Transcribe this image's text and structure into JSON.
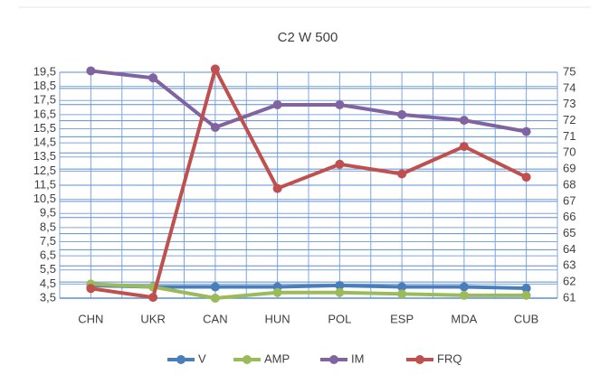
{
  "chart_data": {
    "type": "line",
    "title": "C2 W 500",
    "categories": [
      "CHN",
      "UKR",
      "CAN",
      "HUN",
      "POL",
      "ESP",
      "MDA",
      "CUB"
    ],
    "series": [
      {
        "name": "V",
        "color": "#4a7ebb",
        "axis": "y",
        "values": [
          4.4,
          4.3,
          4.3,
          4.3,
          4.4,
          4.3,
          4.3,
          4.2
        ]
      },
      {
        "name": "AMP",
        "color": "#9bbb59",
        "axis": "y",
        "values": [
          4.5,
          4.3,
          3.5,
          3.9,
          3.9,
          3.8,
          3.7,
          3.7
        ]
      },
      {
        "name": "IM",
        "color": "#8064a2",
        "axis": "y",
        "values": [
          19.6,
          19.1,
          15.6,
          17.2,
          17.2,
          16.5,
          16.1,
          15.3
        ]
      },
      {
        "name": "FRQ",
        "color": "#c0504d",
        "axis": "y2",
        "values": [
          61.6,
          61.05,
          75.2,
          67.8,
          69.3,
          68.7,
          70.4,
          68.5
        ]
      }
    ],
    "ylim": [
      3.5,
      19.5
    ],
    "yticks": [
      {
        "value": 3.5,
        "label": "3,5"
      },
      {
        "value": 4.5,
        "label": "4,5"
      },
      {
        "value": 5.5,
        "label": "5,5"
      },
      {
        "value": 6.5,
        "label": "6,5"
      },
      {
        "value": 7.5,
        "label": "7,5"
      },
      {
        "value": 8.5,
        "label": "8,5"
      },
      {
        "value": 9.5,
        "label": "9,5"
      },
      {
        "value": 10.5,
        "label": "10,5"
      },
      {
        "value": 11.5,
        "label": "11,5"
      },
      {
        "value": 12.5,
        "label": "12,5"
      },
      {
        "value": 13.5,
        "label": "13,5"
      },
      {
        "value": 14.5,
        "label": "14,5"
      },
      {
        "value": 15.5,
        "label": "15,5"
      },
      {
        "value": 16.5,
        "label": "16,5"
      },
      {
        "value": 17.5,
        "label": "17,5"
      },
      {
        "value": 18.5,
        "label": "18,5"
      },
      {
        "value": 19.5,
        "label": "19,5"
      }
    ],
    "y2lim": [
      61,
      75
    ],
    "y2ticks": [
      61,
      62,
      63,
      64,
      65,
      66,
      67,
      68,
      69,
      70,
      71,
      72,
      73,
      74,
      75
    ],
    "grid": true,
    "legend": "bottom"
  }
}
